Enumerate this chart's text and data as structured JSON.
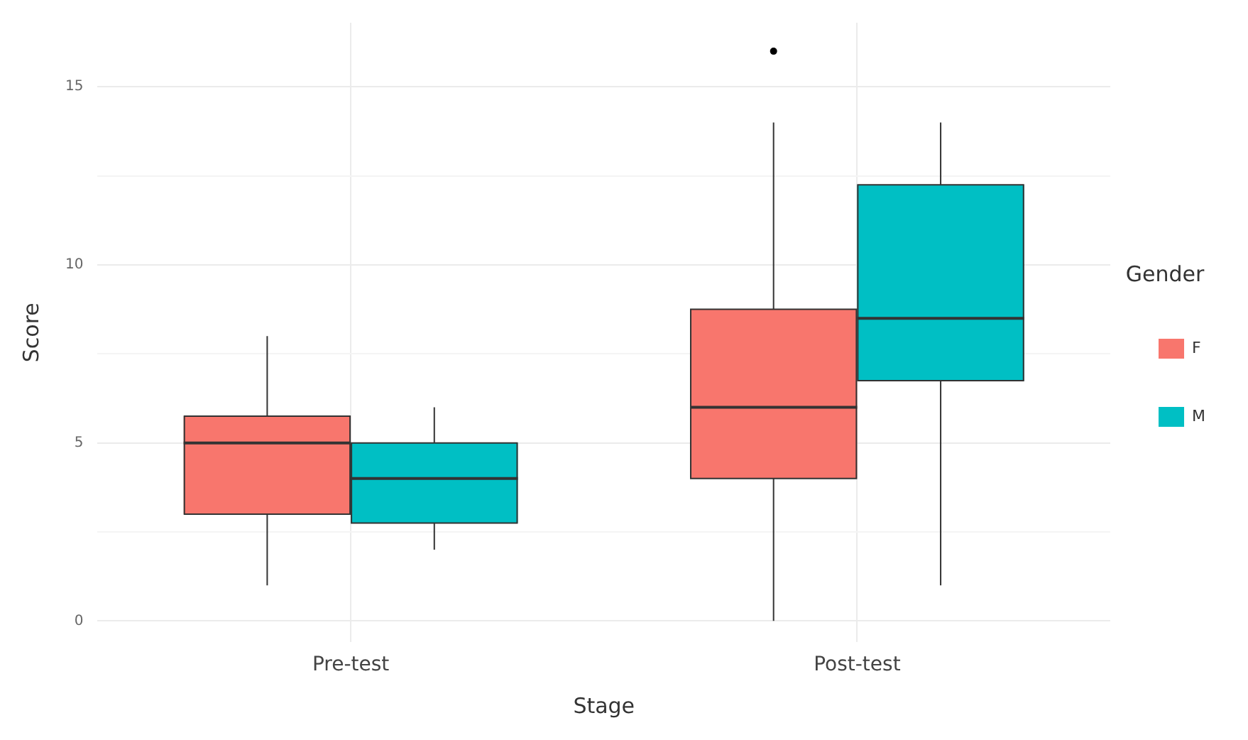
{
  "chart_data": {
    "type": "box",
    "xlabel": "Stage",
    "ylabel": "Score",
    "legend_title": "Gender",
    "legend": "right",
    "grid": true,
    "categories": [
      "Pre-test",
      "Post-test"
    ],
    "ylim": [
      -0.6,
      16.8
    ],
    "yticks": [
      0,
      {
        "value": 2.5,
        "label": null
      },
      5,
      {
        "value": 7.5,
        "label": null
      },
      10,
      {
        "value": 12.5,
        "label": null
      },
      15
    ],
    "series": [
      {
        "name": "F",
        "color": "#f8766d",
        "boxes": [
          {
            "low": 1,
            "q1": 3,
            "median": 5,
            "q3": 5.75,
            "high": 8
          },
          {
            "low": 0,
            "q1": 4,
            "median": 6,
            "q3": 8.75,
            "high": 14,
            "outliers": [
              16
            ]
          }
        ]
      },
      {
        "name": "M",
        "color": "#00bfc4",
        "boxes": [
          {
            "low": 2,
            "q1": 2.75,
            "median": 4,
            "q3": 5,
            "high": 6
          },
          {
            "low": 1,
            "q1": 6.75,
            "median": 8.5,
            "q3": 12.25,
            "high": 14
          }
        ]
      }
    ]
  }
}
